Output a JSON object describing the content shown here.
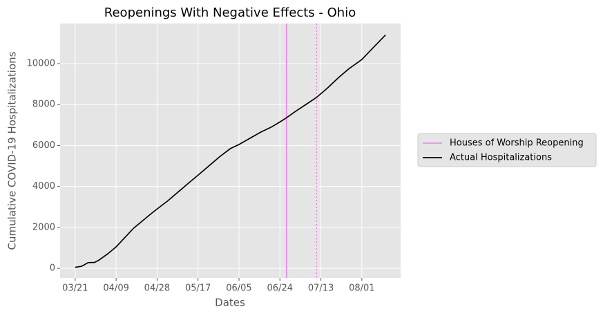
{
  "chart_data": {
    "type": "line",
    "title": "Reopenings With Negative Effects - Ohio",
    "xlabel": "Dates",
    "ylabel": "Cumulative COVID-19 Hospitalizations",
    "x": [
      "03/21",
      "03/24",
      "03/27",
      "03/30",
      "04/01",
      "04/05",
      "04/09",
      "04/13",
      "04/17",
      "04/21",
      "04/25",
      "04/28",
      "05/03",
      "05/08",
      "05/13",
      "05/17",
      "05/22",
      "05/27",
      "06/01",
      "06/05",
      "06/10",
      "06/15",
      "06/20",
      "06/24",
      "06/27",
      "07/01",
      "07/06",
      "07/11",
      "07/16",
      "07/21",
      "07/26",
      "08/01",
      "08/06",
      "08/12"
    ],
    "series": [
      {
        "name": "Actual Hospitalizations",
        "color": "#000000",
        "values": [
          50,
          100,
          280,
          290,
          400,
          700,
          1050,
          1500,
          1950,
          2300,
          2650,
          2900,
          3300,
          3750,
          4200,
          4550,
          5000,
          5450,
          5850,
          6050,
          6350,
          6650,
          6900,
          7150,
          7350,
          7650,
          8000,
          8350,
          8800,
          9300,
          9750,
          10200,
          10750,
          11400
        ]
      }
    ],
    "vlines": [
      {
        "name": "Houses of Worship Reopening",
        "x": "06/27",
        "color": "#ee82ee",
        "style": "solid"
      },
      {
        "x": "07/11",
        "color": "#ee82ee",
        "style": "dotted"
      }
    ],
    "xlim": [
      "03/14",
      "08/19"
    ],
    "xticks": [
      "03/21",
      "04/09",
      "04/28",
      "05/17",
      "06/05",
      "06/24",
      "07/13",
      "08/01"
    ],
    "ylim": [
      -470,
      11960
    ],
    "yticks": [
      0,
      2000,
      4000,
      6000,
      8000,
      10000
    ],
    "grid": true,
    "legend": "outside right"
  }
}
